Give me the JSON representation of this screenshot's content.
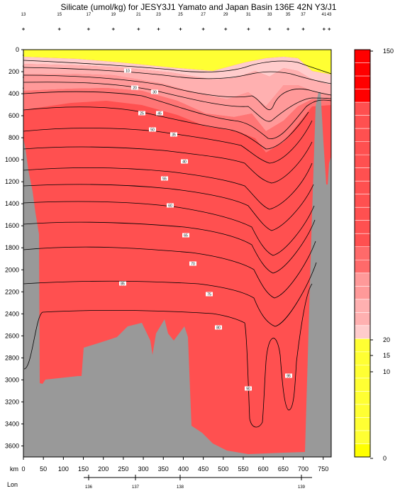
{
  "chart_data": {
    "type": "heatmap",
    "title": "Silicate (umol/kg) for JESY3J1 Yamato and Japan Basin 136E 42N Y3/J1",
    "x_axis": {
      "label": "km",
      "range": [
        0,
        770
      ],
      "ticks": [
        "0",
        "50",
        "100",
        "150",
        "200",
        "250",
        "300",
        "350",
        "400",
        "450",
        "500",
        "550",
        "600",
        "650",
        "700",
        "750"
      ]
    },
    "lon_axis": {
      "label": "Lon",
      "ticks": [
        "136",
        "137",
        "138",
        "139"
      ]
    },
    "y_axis": {
      "label": "",
      "range": [
        0,
        3700
      ],
      "inverted": true,
      "ticks": [
        "0",
        "200",
        "400",
        "600",
        "800",
        "1000",
        "1200",
        "1400",
        "1600",
        "1800",
        "2000",
        "2200",
        "2400",
        "2600",
        "2800",
        "3000",
        "3200",
        "3400",
        "3600"
      ]
    },
    "colorbar": {
      "range": [
        0,
        150
      ],
      "labels": [
        "150",
        "20",
        "15",
        "10",
        "0"
      ],
      "high_color": "#ff0000",
      "main_color": "#ff5050",
      "mid_color": "#ff9999",
      "light_color": "#ffcccc",
      "yellow_color": "#ffff33",
      "bottom_color": "#ffff00"
    },
    "contour_labels": [
      "10",
      "20",
      "25",
      "30",
      "35",
      "40",
      "45",
      "50",
      "55",
      "60",
      "65",
      "70",
      "75",
      "80",
      "85",
      "90",
      "95"
    ],
    "stations": [
      {
        "name": "13",
        "km": 0
      },
      {
        "name": "15",
        "km": 90
      },
      {
        "name": "17",
        "km": 163
      },
      {
        "name": "19",
        "km": 225
      },
      {
        "name": "21",
        "km": 288
      },
      {
        "name": "23",
        "km": 338
      },
      {
        "name": "25",
        "km": 393
      },
      {
        "name": "27",
        "km": 450
      },
      {
        "name": "29",
        "km": 506
      },
      {
        "name": "31",
        "km": 563
      },
      {
        "name": "33",
        "km": 616
      },
      {
        "name": "35",
        "km": 662
      },
      {
        "name": "37",
        "km": 700
      },
      {
        "name": "41",
        "km": 752
      },
      {
        "name": "43",
        "km": 765
      }
    ],
    "grid": false,
    "legend": "colorbar-right"
  }
}
